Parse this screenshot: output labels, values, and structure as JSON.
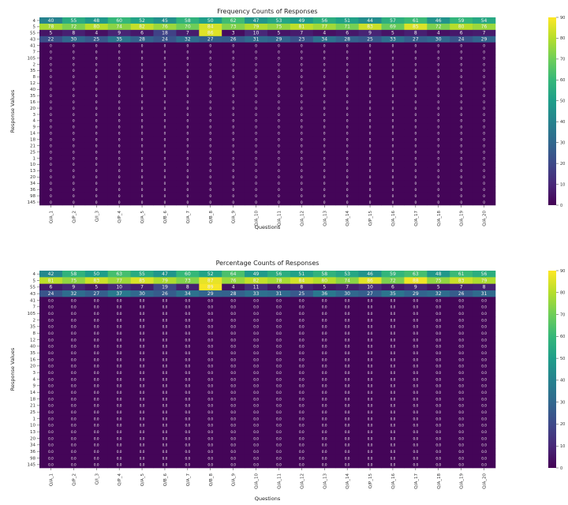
{
  "chart_data": [
    {
      "type": "heatmap",
      "title": "Frequency Counts of Responses",
      "xlabel": "Questions",
      "ylabel": "Response Values",
      "x": [
        "Q/A_1",
        "Q/P_2",
        "Q/I_3",
        "Q/P_4",
        "Q/A_5",
        "Q/B_6",
        "Q/A_7",
        "Q/B_8",
        "Q/A_9",
        "Q/A_10",
        "Q/A_11",
        "Q/A_12",
        "Q/A_13",
        "Q/A_14",
        "Q/P_15",
        "Q/A_16",
        "Q/A_17",
        "Q/A_18",
        "Q/A_19",
        "Q/A_20"
      ],
      "y": [
        "4",
        "5",
        "55",
        "43",
        "41",
        "7",
        "105",
        "2",
        "35",
        "8",
        "12",
        "40",
        "35",
        "16",
        "20",
        "3",
        "4",
        "9",
        "14",
        "18",
        "21",
        "25",
        "1",
        "10",
        "13",
        "20",
        "34",
        "36",
        "98",
        "145"
      ],
      "colorbar": {
        "min": 0,
        "max": 90,
        "ticks": [
          "90",
          "80",
          "70",
          "60",
          "50",
          "40",
          "30",
          "20",
          "10",
          "0"
        ]
      },
      "colormap": "viridis",
      "annotation_color": "#f0f0f0",
      "rows_shown": [
        [
          40,
          55,
          48,
          60,
          52,
          45,
          58,
          50,
          62,
          47,
          53,
          49,
          56,
          51,
          44,
          57,
          61,
          46,
          59,
          54
        ],
        [
          78,
          72,
          80,
          74,
          82,
          76,
          70,
          84,
          73,
          79,
          75,
          81,
          77,
          71,
          83,
          69,
          85,
          72,
          80,
          76
        ],
        [
          5,
          8,
          4,
          9,
          6,
          18,
          7,
          86,
          3,
          10,
          5,
          7,
          4,
          6,
          9,
          5,
          8,
          4,
          6,
          7
        ],
        [
          22,
          30,
          25,
          35,
          28,
          24,
          32,
          27,
          26,
          31,
          29,
          23,
          34,
          28,
          25,
          33,
          27,
          30,
          24,
          29
        ]
      ]
    },
    {
      "type": "heatmap",
      "title": "Percentage Counts of Responses",
      "xlabel": "Questions",
      "ylabel": "Response Values",
      "x": [
        "Q/A_1",
        "Q/P_2",
        "Q/I_3",
        "Q/P_4",
        "Q/A_5",
        "Q/B_6",
        "Q/A_7",
        "Q/B_8",
        "Q/A_9",
        "Q/A_10",
        "Q/A_11",
        "Q/A_12",
        "Q/A_13",
        "Q/A_14",
        "Q/P_15",
        "Q/A_16",
        "Q/A_17",
        "Q/A_18",
        "Q/A_19",
        "Q/A_20"
      ],
      "y": [
        "4",
        "5",
        "55",
        "43",
        "41",
        "7",
        "105",
        "2",
        "35",
        "8",
        "12",
        "40",
        "35",
        "16",
        "20",
        "3",
        "4",
        "9",
        "14",
        "18",
        "21",
        "25",
        "1",
        "10",
        "13",
        "20",
        "34",
        "36",
        "98",
        "145"
      ],
      "colorbar": {
        "min": 0,
        "max": 90,
        "ticks": [
          "90",
          "80",
          "70",
          "60",
          "50",
          "40",
          "30",
          "20",
          "10",
          "0"
        ]
      },
      "colormap": "viridis",
      "annotation_color": "#f0f0f0",
      "rows_shown": [
        [
          42,
          58,
          50,
          63,
          55,
          47,
          60,
          52,
          64,
          49,
          56,
          51,
          58,
          53,
          46,
          59,
          63,
          48,
          61,
          56
        ],
        [
          81,
          75,
          83,
          77,
          85,
          79,
          73,
          87,
          76,
          82,
          78,
          84,
          80,
          74,
          86,
          72,
          88,
          75,
          83,
          79
        ],
        [
          6,
          9,
          5,
          10,
          7,
          19,
          8,
          89,
          4,
          11,
          6,
          8,
          5,
          7,
          10,
          6,
          9,
          5,
          7,
          8
        ],
        [
          24,
          32,
          27,
          37,
          30,
          26,
          34,
          29,
          28,
          33,
          31,
          25,
          36,
          30,
          27,
          35,
          29,
          32,
          26,
          31
        ]
      ]
    }
  ]
}
